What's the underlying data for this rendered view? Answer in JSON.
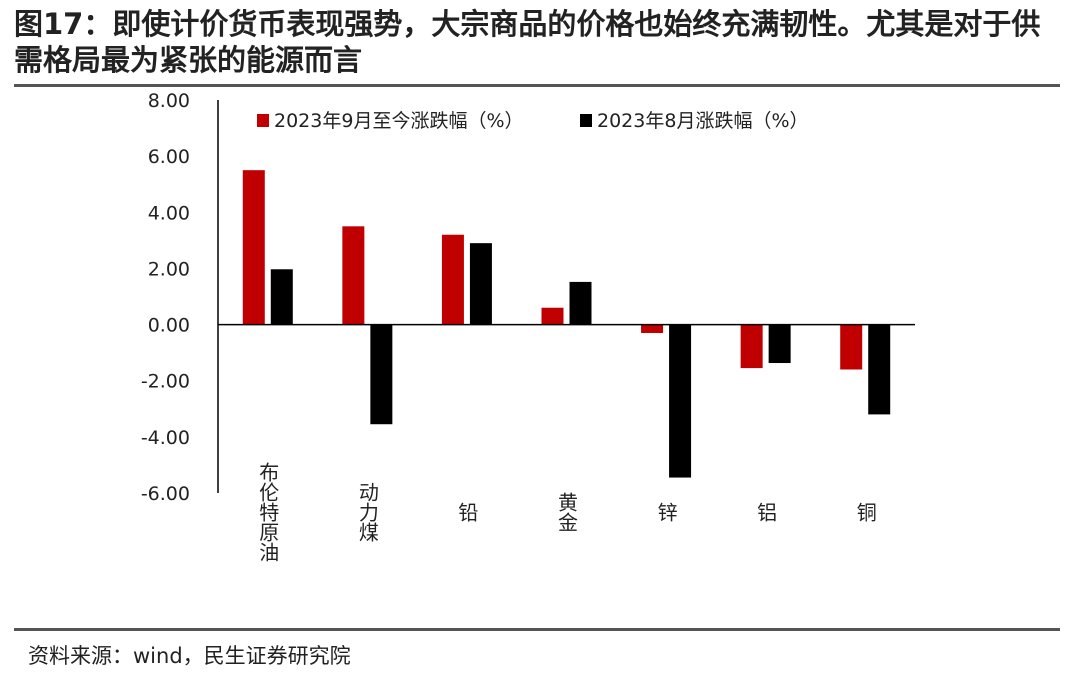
{
  "title": "图17：即使计价货币表现强势，大宗商品的价格也始终充满韧性。尤其是对于供需格局最为紧张的能源而言",
  "source": "资料来源：wind，民生证券研究院",
  "colors": {
    "series_sep": "#c00000",
    "series_aug": "#000000",
    "axis": "#000000"
  },
  "chart_data": {
    "type": "bar",
    "categories": [
      "布伦特原油",
      "动力煤",
      "铅",
      "黄金",
      "锌",
      "铝",
      "铜"
    ],
    "series": [
      {
        "name": "2023年9月至今涨跌幅（%）",
        "values": [
          5.5,
          3.5,
          3.2,
          0.6,
          -0.3,
          -1.55,
          -1.6
        ]
      },
      {
        "name": "2023年8月涨跌幅（%）",
        "values": [
          1.97,
          -3.55,
          2.9,
          1.52,
          -5.45,
          -1.37,
          -3.2
        ]
      }
    ],
    "yticks": [
      "8.00",
      "6.00",
      "4.00",
      "2.00",
      "0.00",
      "-2.00",
      "-4.00",
      "-6.00"
    ],
    "ylim": [
      -6,
      8
    ],
    "xlabel": "",
    "ylabel": "",
    "grid": false,
    "legend": "top"
  }
}
